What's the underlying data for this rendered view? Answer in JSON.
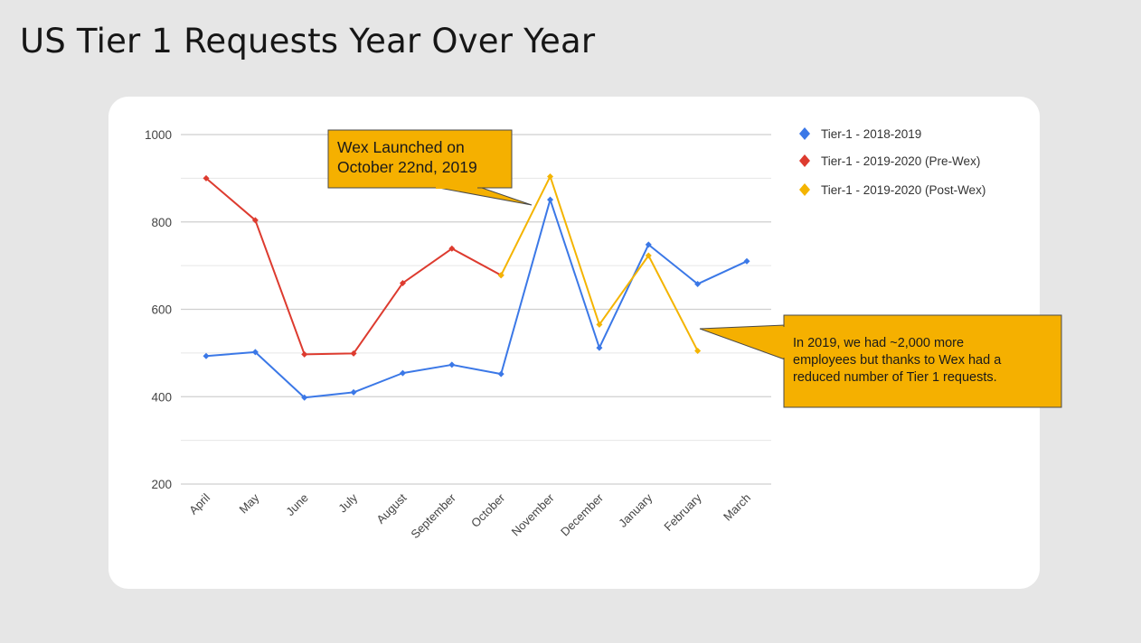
{
  "slide": {
    "title": "US Tier 1 Requests Year Over Year"
  },
  "chart_data": {
    "type": "line",
    "title": "",
    "xlabel": "",
    "ylabel": "",
    "ylim": [
      200,
      1000
    ],
    "yticks": [
      200,
      400,
      600,
      800,
      1000
    ],
    "grid": true,
    "legend_position": "right",
    "categories": [
      "April",
      "May",
      "June",
      "July",
      "August",
      "September",
      "October",
      "November",
      "December",
      "January",
      "February",
      "March"
    ],
    "series": [
      {
        "name": "Tier-1 - 2018-2019",
        "color": "#3b78e7",
        "values": [
          493,
          502,
          398,
          410,
          454,
          473,
          452,
          851,
          512,
          748,
          658,
          710
        ]
      },
      {
        "name": "Tier-1 - 2019-2020 (Pre-Wex)",
        "color": "#dd3b2f",
        "values": [
          900,
          804,
          497,
          499,
          660,
          739,
          678,
          null,
          null,
          null,
          null,
          null
        ]
      },
      {
        "name": "Tier-1 - 2019-2020 (Post-Wex)",
        "color": "#f4b400",
        "values": [
          null,
          null,
          null,
          null,
          null,
          null,
          678,
          904,
          565,
          723,
          505,
          null
        ]
      }
    ],
    "annotations": [
      "Wex Launched on October 22nd, 2019",
      "In 2019, we had ~2,000 more employees but thanks to Wex had a reduced number of Tier 1 requests."
    ]
  },
  "callouts": {
    "wex_launch": {
      "line1": "Wex Launched on",
      "line2": "October 22nd, 2019"
    },
    "note": {
      "line1": "In 2019, we had ~2,000 more",
      "line2": "employees but thanks to Wex had a",
      "line3": "reduced number of Tier 1 requests."
    }
  },
  "colors": {
    "callout_fill": "#f5b000",
    "callout_border": "#4a4a4a",
    "grid": "#dcdcdc"
  }
}
